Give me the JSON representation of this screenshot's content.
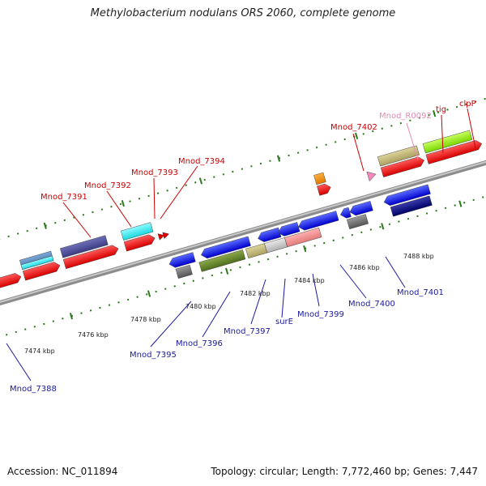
{
  "title": "Methylobacterium nodulans ORS 2060, complete genome",
  "footer": {
    "accession": "Accession: NC_011894",
    "topology": "Topology: circular; Length: 7,772,460 bp; Genes: 7,447"
  },
  "colors": {
    "forward_label": "#cc0000",
    "reverse_label": "#1a1aa0",
    "rna_label": "#e88ab6",
    "tick": "#2a7a1a",
    "backbone": "#8c8c8c"
  },
  "scale_labels": [
    "7474 kbp",
    "7476 kbp",
    "7478 kbp",
    "7480 kbp",
    "7482 kbp",
    "7484 kbp",
    "7486 kbp",
    "7488 kbp"
  ],
  "forward_genes": [
    "Mnod_7391",
    "Mnod_7392",
    "Mnod_7393",
    "Mnod_7394",
    "Mnod_7402",
    "Mnod_R0092",
    "tig",
    "clpP"
  ],
  "reverse_genes": [
    "Mnod_7388",
    "Mnod_7395",
    "Mnod_7396",
    "Mnod_7397",
    "surE",
    "Mnod_7399",
    "Mnod_7400",
    "Mnod_7401"
  ]
}
